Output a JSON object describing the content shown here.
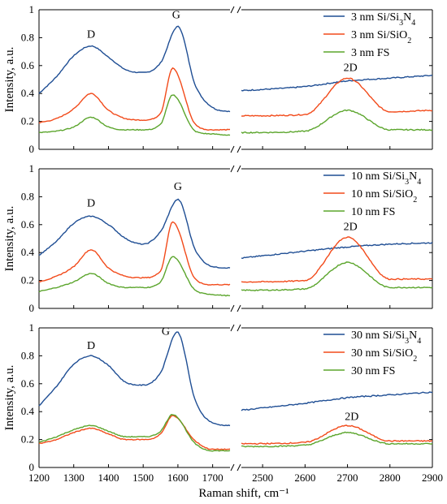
{
  "chart_data": [
    {
      "type": "line",
      "xlabel": "Raman shift, cm⁻¹",
      "ylabel": "Intensity, a.u.",
      "ylim": [
        0,
        1
      ],
      "yticks": [
        "0",
        "0.2",
        "0.4",
        "0.6",
        "0.8",
        "1"
      ],
      "xlim_left": [
        1200,
        1750
      ],
      "xlim_right": [
        2450,
        2900
      ],
      "xticks_left": [
        "1200",
        "1300",
        "1400",
        "1500",
        "1600",
        "1700"
      ],
      "xticks_right": [
        "2500",
        "2600",
        "2700",
        "2800",
        "2900"
      ],
      "axis_break": true,
      "peak_labels": [
        {
          "text": "D",
          "x": 1350,
          "y": 0.8
        },
        {
          "text": "G",
          "x": 1595,
          "y": 0.94
        },
        {
          "text": "2D",
          "x": 2707,
          "y": 0.56
        }
      ],
      "series": [
        {
          "name": "3 nm Si/Si3N4",
          "legend": {
            "pre": "3 nm Si/Si",
            "sub1": "3",
            "mid": "N",
            "sub2": "4"
          },
          "color": "#1f4e94",
          "peaks": [
            {
              "c": 1345,
              "a": 0.75,
              "w": 75
            },
            {
              "c": 1598,
              "a": 0.88,
              "w": 28
            }
          ],
          "x": [
            1200,
            1250,
            1300,
            1350,
            1400,
            1450,
            1500,
            1550,
            1600,
            1650,
            1700,
            1750
          ],
          "y": [
            0.4,
            0.52,
            0.67,
            0.74,
            0.66,
            0.57,
            0.55,
            0.62,
            0.88,
            0.46,
            0.3,
            0.27
          ],
          "right": {
            "x": [
              2450,
              2600,
              2700,
              2800,
              2900
            ],
            "y": [
              0.42,
              0.45,
              0.49,
              0.51,
              0.53
            ]
          }
        },
        {
          "name": "3 nm Si/SiO2",
          "legend": {
            "pre": "3 nm Si/SiO",
            "sub1": "2",
            "mid": "",
            "sub2": ""
          },
          "color": "#f24a1a",
          "x": [
            1200,
            1250,
            1300,
            1350,
            1400,
            1450,
            1500,
            1550,
            1585,
            1650,
            1700,
            1750
          ],
          "y": [
            0.19,
            0.22,
            0.29,
            0.4,
            0.28,
            0.22,
            0.21,
            0.26,
            0.58,
            0.18,
            0.14,
            0.14
          ],
          "right": {
            "x": [
              2450,
              2600,
              2700,
              2800,
              2900
            ],
            "y": [
              0.24,
              0.25,
              0.51,
              0.27,
              0.28
            ]
          }
        },
        {
          "name": "3 nm FS",
          "legend": {
            "pre": "3 nm FS",
            "sub1": "",
            "mid": "",
            "sub2": ""
          },
          "color": "#5ba52c",
          "x": [
            1200,
            1250,
            1300,
            1350,
            1400,
            1450,
            1500,
            1550,
            1585,
            1650,
            1700,
            1750
          ],
          "y": [
            0.12,
            0.13,
            0.16,
            0.23,
            0.16,
            0.14,
            0.14,
            0.18,
            0.39,
            0.13,
            0.11,
            0.1
          ],
          "right": {
            "x": [
              2450,
              2600,
              2700,
              2800,
              2900
            ],
            "y": [
              0.12,
              0.13,
              0.28,
              0.14,
              0.14
            ]
          }
        }
      ]
    },
    {
      "type": "line",
      "xlabel": "",
      "ylabel": "Intensity, a.u.",
      "ylim": [
        0,
        1
      ],
      "yticks": [
        "0",
        "0.2",
        "0.4",
        "0.6",
        "0.8",
        "1"
      ],
      "xlim_left": [
        1200,
        1750
      ],
      "xlim_right": [
        2450,
        2900
      ],
      "axis_break": true,
      "peak_labels": [
        {
          "text": "D",
          "x": 1350,
          "y": 0.73
        },
        {
          "text": "G",
          "x": 1600,
          "y": 0.85
        },
        {
          "text": "2D",
          "x": 2707,
          "y": 0.56
        }
      ],
      "series": [
        {
          "name": "10 nm Si/Si3N4",
          "legend": {
            "pre": "10 nm Si/Si",
            "sub1": "3",
            "mid": "N",
            "sub2": "4"
          },
          "color": "#1f4e94",
          "x": [
            1200,
            1250,
            1300,
            1350,
            1400,
            1450,
            1500,
            1550,
            1600,
            1650,
            1700,
            1750
          ],
          "y": [
            0.38,
            0.48,
            0.61,
            0.66,
            0.6,
            0.5,
            0.46,
            0.55,
            0.78,
            0.42,
            0.3,
            0.29
          ],
          "right": {
            "x": [
              2450,
              2600,
              2700,
              2800,
              2900
            ],
            "y": [
              0.36,
              0.41,
              0.44,
              0.46,
              0.47
            ]
          }
        },
        {
          "name": "10 nm Si/SiO2",
          "legend": {
            "pre": "10 nm Si/SiO",
            "sub1": "2",
            "mid": "",
            "sub2": ""
          },
          "color": "#f24a1a",
          "x": [
            1200,
            1250,
            1300,
            1350,
            1400,
            1450,
            1500,
            1550,
            1585,
            1650,
            1700,
            1750
          ],
          "y": [
            0.19,
            0.23,
            0.3,
            0.42,
            0.29,
            0.23,
            0.22,
            0.27,
            0.62,
            0.21,
            0.17,
            0.17
          ],
          "right": {
            "x": [
              2450,
              2600,
              2700,
              2800,
              2900
            ],
            "y": [
              0.19,
              0.2,
              0.51,
              0.21,
              0.21
            ]
          }
        },
        {
          "name": "10 nm FS",
          "legend": {
            "pre": "10 nm FS",
            "sub1": "",
            "mid": "",
            "sub2": ""
          },
          "color": "#5ba52c",
          "x": [
            1200,
            1250,
            1300,
            1350,
            1400,
            1450,
            1500,
            1550,
            1585,
            1650,
            1700,
            1750
          ],
          "y": [
            0.12,
            0.15,
            0.19,
            0.25,
            0.18,
            0.15,
            0.15,
            0.19,
            0.37,
            0.13,
            0.1,
            0.09
          ],
          "right": {
            "x": [
              2450,
              2600,
              2700,
              2800,
              2900
            ],
            "y": [
              0.13,
              0.14,
              0.33,
              0.15,
              0.15
            ]
          }
        }
      ]
    },
    {
      "type": "line",
      "xlabel": "Raman shift, cm⁻¹",
      "ylabel": "Intensity, a.u.",
      "ylim": [
        0,
        1
      ],
      "yticks": [
        "0",
        "0.2",
        "0.4",
        "0.6",
        "0.8",
        "1"
      ],
      "xlim_left": [
        1200,
        1750
      ],
      "xlim_right": [
        2450,
        2900
      ],
      "xticks_left": [
        "1200",
        "1300",
        "1400",
        "1500",
        "1600",
        "1700"
      ],
      "xticks_right": [
        "2500",
        "2600",
        "2700",
        "2800",
        "2900"
      ],
      "axis_break": true,
      "peak_labels": [
        {
          "text": "D",
          "x": 1350,
          "y": 0.85
        },
        {
          "text": "G",
          "x": 1565,
          "y": 0.95
        },
        {
          "text": "2D",
          "x": 2710,
          "y": 0.34
        }
      ],
      "series": [
        {
          "name": "30 nm Si/Si3N4",
          "legend": {
            "pre": "30 nm Si/Si",
            "sub1": "3",
            "mid": "N",
            "sub2": "4"
          },
          "color": "#1f4e94",
          "x": [
            1200,
            1250,
            1300,
            1350,
            1400,
            1450,
            1500,
            1550,
            1598,
            1650,
            1700,
            1750
          ],
          "y": [
            0.44,
            0.58,
            0.74,
            0.8,
            0.73,
            0.61,
            0.59,
            0.68,
            0.97,
            0.48,
            0.32,
            0.3
          ],
          "right": {
            "x": [
              2450,
              2600,
              2700,
              2800,
              2900
            ],
            "y": [
              0.41,
              0.46,
              0.5,
              0.52,
              0.54
            ]
          }
        },
        {
          "name": "30 nm Si/SiO2",
          "legend": {
            "pre": "30 nm Si/SiO",
            "sub1": "2",
            "mid": "",
            "sub2": ""
          },
          "color": "#f24a1a",
          "x": [
            1200,
            1250,
            1300,
            1350,
            1400,
            1450,
            1500,
            1550,
            1585,
            1650,
            1700,
            1750
          ],
          "y": [
            0.17,
            0.2,
            0.25,
            0.28,
            0.24,
            0.2,
            0.2,
            0.24,
            0.37,
            0.19,
            0.13,
            0.13
          ],
          "right": {
            "x": [
              2450,
              2600,
              2700,
              2800,
              2900
            ],
            "y": [
              0.17,
              0.18,
              0.3,
              0.19,
              0.19
            ]
          }
        },
        {
          "name": "30 nm FS",
          "legend": {
            "pre": "30 nm FS",
            "sub1": "",
            "mid": "",
            "sub2": ""
          },
          "color": "#5ba52c",
          "x": [
            1200,
            1250,
            1300,
            1350,
            1400,
            1450,
            1500,
            1550,
            1585,
            1650,
            1700,
            1750
          ],
          "y": [
            0.18,
            0.22,
            0.27,
            0.3,
            0.26,
            0.22,
            0.22,
            0.26,
            0.38,
            0.17,
            0.12,
            0.12
          ],
          "right": {
            "x": [
              2450,
              2600,
              2700,
              2800,
              2900
            ],
            "y": [
              0.15,
              0.16,
              0.25,
              0.17,
              0.17
            ]
          }
        }
      ]
    }
  ]
}
